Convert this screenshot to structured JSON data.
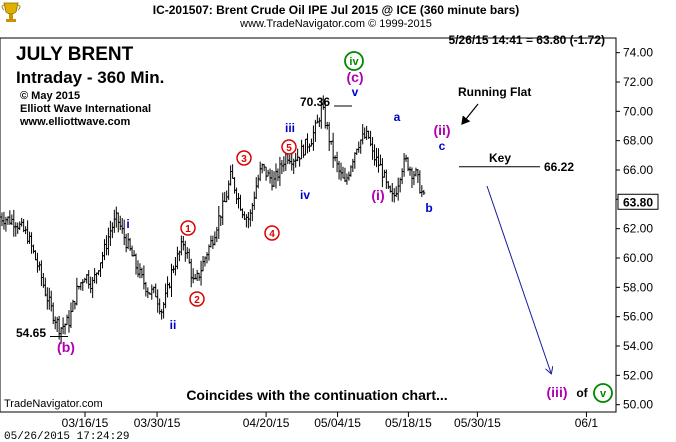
{
  "chart_data": {
    "type": "line",
    "style": "ohlc-bars",
    "header": {
      "line1": "IC-201507:  Brent Crude Oil IPE Jul 2015 @ ICE  (360 minute bars)",
      "line2": "www.TradeNavigator.com © 1999-2015"
    },
    "title_main": "JULY BRENT",
    "title_sub": "Intraday - 360 Min.",
    "credits": [
      "© May 2015",
      "Elliott Wave International",
      "www.elliottwave.com"
    ],
    "quote_readout": "5/26/15 14:41 = 63.80 (-1.72)",
    "last_price_label": "63.80",
    "last_price": 63.8,
    "caption": "Coincides with the continuation chart...",
    "footer_brand": "TradeNavigator.com",
    "footer_timestamp": "05/26/2015 17:24:29",
    "ylim": [
      49.5,
      75
    ],
    "yticks": [
      "50.00",
      "52.00",
      "54.00",
      "56.00",
      "58.00",
      "60.00",
      "62.00",
      "64.00",
      "66.00",
      "68.00",
      "70.00",
      "72.00",
      "74.00"
    ],
    "xticks": [
      "03/16/15",
      "03/30/15",
      "04/20/15",
      "05/04/15",
      "05/18/15",
      "05/30/15",
      "06/1"
    ],
    "xtick_pos": [
      0.138,
      0.255,
      0.432,
      0.548,
      0.663,
      0.775,
      0.952
    ],
    "series": [
      {
        "points": [
          [
            0.0,
            62.8
          ],
          [
            0.025,
            62.5
          ],
          [
            0.045,
            61.5
          ],
          [
            0.065,
            59.0
          ],
          [
            0.075,
            57.5
          ],
          [
            0.085,
            56.3
          ],
          [
            0.097,
            55.2
          ],
          [
            0.112,
            55.7
          ],
          [
            0.125,
            57.8
          ],
          [
            0.138,
            58.9
          ],
          [
            0.15,
            58.2
          ],
          [
            0.16,
            59.5
          ],
          [
            0.17,
            60.6
          ],
          [
            0.18,
            62.0
          ],
          [
            0.19,
            62.7
          ],
          [
            0.2,
            61.6
          ],
          [
            0.21,
            60.6
          ],
          [
            0.22,
            59.5
          ],
          [
            0.23,
            58.6
          ],
          [
            0.242,
            57.7
          ],
          [
            0.253,
            57.6
          ],
          [
            0.262,
            56.4
          ],
          [
            0.27,
            57.4
          ],
          [
            0.28,
            59.3
          ],
          [
            0.29,
            60.2
          ],
          [
            0.298,
            61.1
          ],
          [
            0.305,
            60.0
          ],
          [
            0.315,
            58.1
          ],
          [
            0.325,
            59.1
          ],
          [
            0.335,
            60.3
          ],
          [
            0.345,
            61.3
          ],
          [
            0.355,
            62.7
          ],
          [
            0.365,
            63.8
          ],
          [
            0.375,
            65.6
          ],
          [
            0.385,
            64.3
          ],
          [
            0.395,
            63.1
          ],
          [
            0.405,
            62.6
          ],
          [
            0.415,
            64.8
          ],
          [
            0.425,
            66.2
          ],
          [
            0.435,
            65.6
          ],
          [
            0.445,
            65.2
          ],
          [
            0.455,
            66.1
          ],
          [
            0.465,
            67.1
          ],
          [
            0.475,
            66.8
          ],
          [
            0.485,
            67.0
          ],
          [
            0.495,
            67.6
          ],
          [
            0.505,
            68.1
          ],
          [
            0.515,
            69.1
          ],
          [
            0.522,
            70.3
          ],
          [
            0.53,
            69.0
          ],
          [
            0.54,
            67.1
          ],
          [
            0.55,
            65.9
          ],
          [
            0.56,
            65.0
          ],
          [
            0.57,
            66.5
          ],
          [
            0.58,
            67.8
          ],
          [
            0.59,
            68.2
          ],
          [
            0.598,
            68.3
          ],
          [
            0.605,
            67.0
          ],
          [
            0.612,
            66.6
          ],
          [
            0.62,
            66.0
          ],
          [
            0.63,
            64.5
          ],
          [
            0.638,
            64.0
          ],
          [
            0.645,
            65.0
          ],
          [
            0.652,
            66.2
          ],
          [
            0.66,
            66.6
          ],
          [
            0.668,
            65.9
          ],
          [
            0.675,
            65.7
          ],
          [
            0.682,
            64.8
          ],
          [
            0.69,
            63.8
          ]
        ]
      }
    ],
    "annotations": {
      "low_label": "54.65",
      "low_value": 54.65,
      "high_label": "70.36",
      "high_value": 70.36,
      "key_label": "Key",
      "key_value_label": "66.22",
      "key_value": 66.22,
      "running_flat": "Running Flat",
      "of_text": "of",
      "waves_red": [
        "1",
        "2",
        "3",
        "4",
        "5"
      ],
      "waves_blue": [
        "i",
        "ii",
        "iii",
        "iv",
        "v",
        "a",
        "b",
        "c"
      ],
      "waves_purple": [
        "(b)",
        "(i)",
        "(ii)",
        "(c)",
        "(iii)"
      ],
      "waves_green": [
        "iv",
        "v"
      ]
    },
    "colors": {
      "bars": "#000000",
      "red": "#dd0000",
      "blue": "#0000cc",
      "purple": "#b000b0",
      "green": "#008800",
      "forecast_arrow": "#1a1aa0"
    }
  }
}
